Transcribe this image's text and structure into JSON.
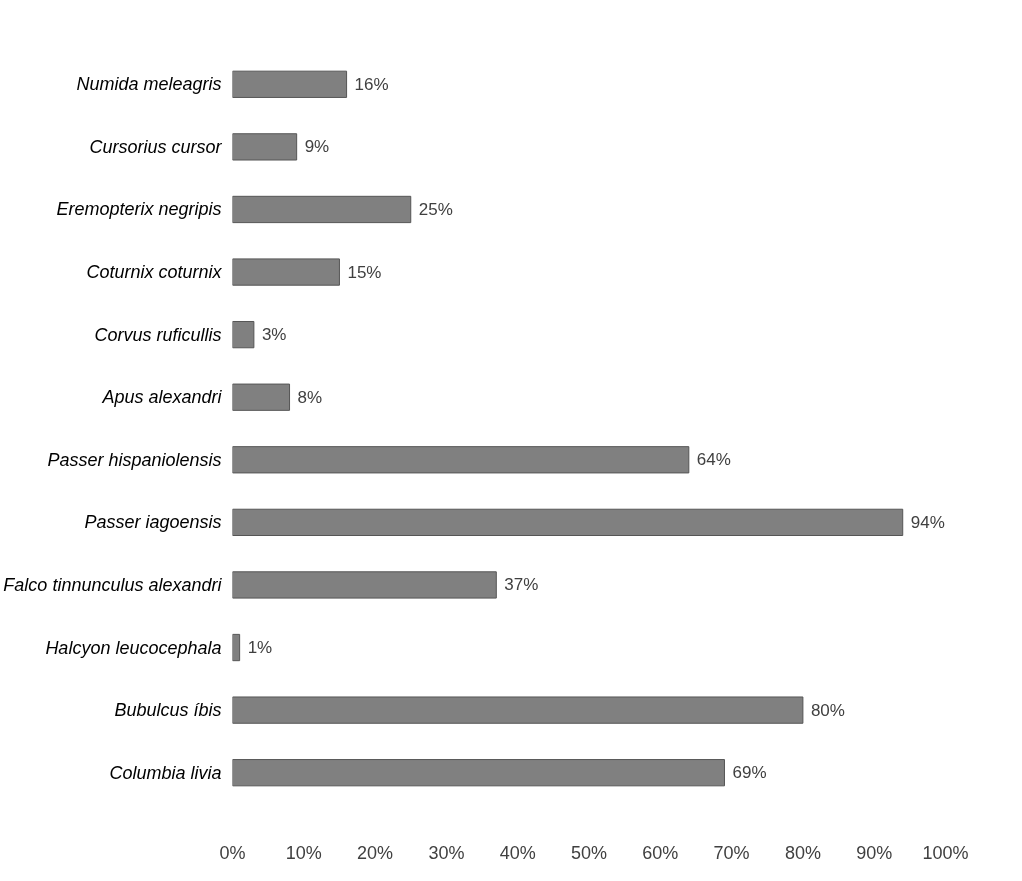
{
  "chart_data": {
    "type": "bar",
    "orientation": "horizontal",
    "categories": [
      "Numida meleagris",
      "Cursorius cursor",
      "Eremopterix negripis",
      "Coturnix coturnix",
      "Corvus ruficullis",
      "Apus alexandri",
      "Passer hispaniolensis",
      "Passer iagoensis",
      "Falco tinnunculus alexandri",
      "Halcyon leucocephala",
      "Bubulcus íbis",
      "Columbia livia"
    ],
    "values": [
      16,
      9,
      25,
      15,
      3,
      8,
      64,
      94,
      37,
      1,
      80,
      69
    ],
    "value_labels": [
      "16%",
      "9%",
      "25%",
      "15%",
      "3%",
      "8%",
      "64%",
      "94%",
      "37%",
      "1%",
      "80%",
      "69%"
    ],
    "color": "#808080",
    "xlim": [
      0,
      100
    ],
    "xticks": [
      {
        "value": 0,
        "label": "0%"
      },
      {
        "value": 10,
        "label": "10%"
      },
      {
        "value": 20,
        "label": "20%"
      },
      {
        "value": 30,
        "label": "30%"
      },
      {
        "value": 40,
        "label": "40%"
      },
      {
        "value": 50,
        "label": "50%"
      },
      {
        "value": 60,
        "label": "60%"
      },
      {
        "value": 70,
        "label": "70%"
      },
      {
        "value": 80,
        "label": "80%"
      },
      {
        "value": 90,
        "label": "90%"
      },
      {
        "value": 100,
        "label": "100%"
      }
    ],
    "grid": false
  }
}
